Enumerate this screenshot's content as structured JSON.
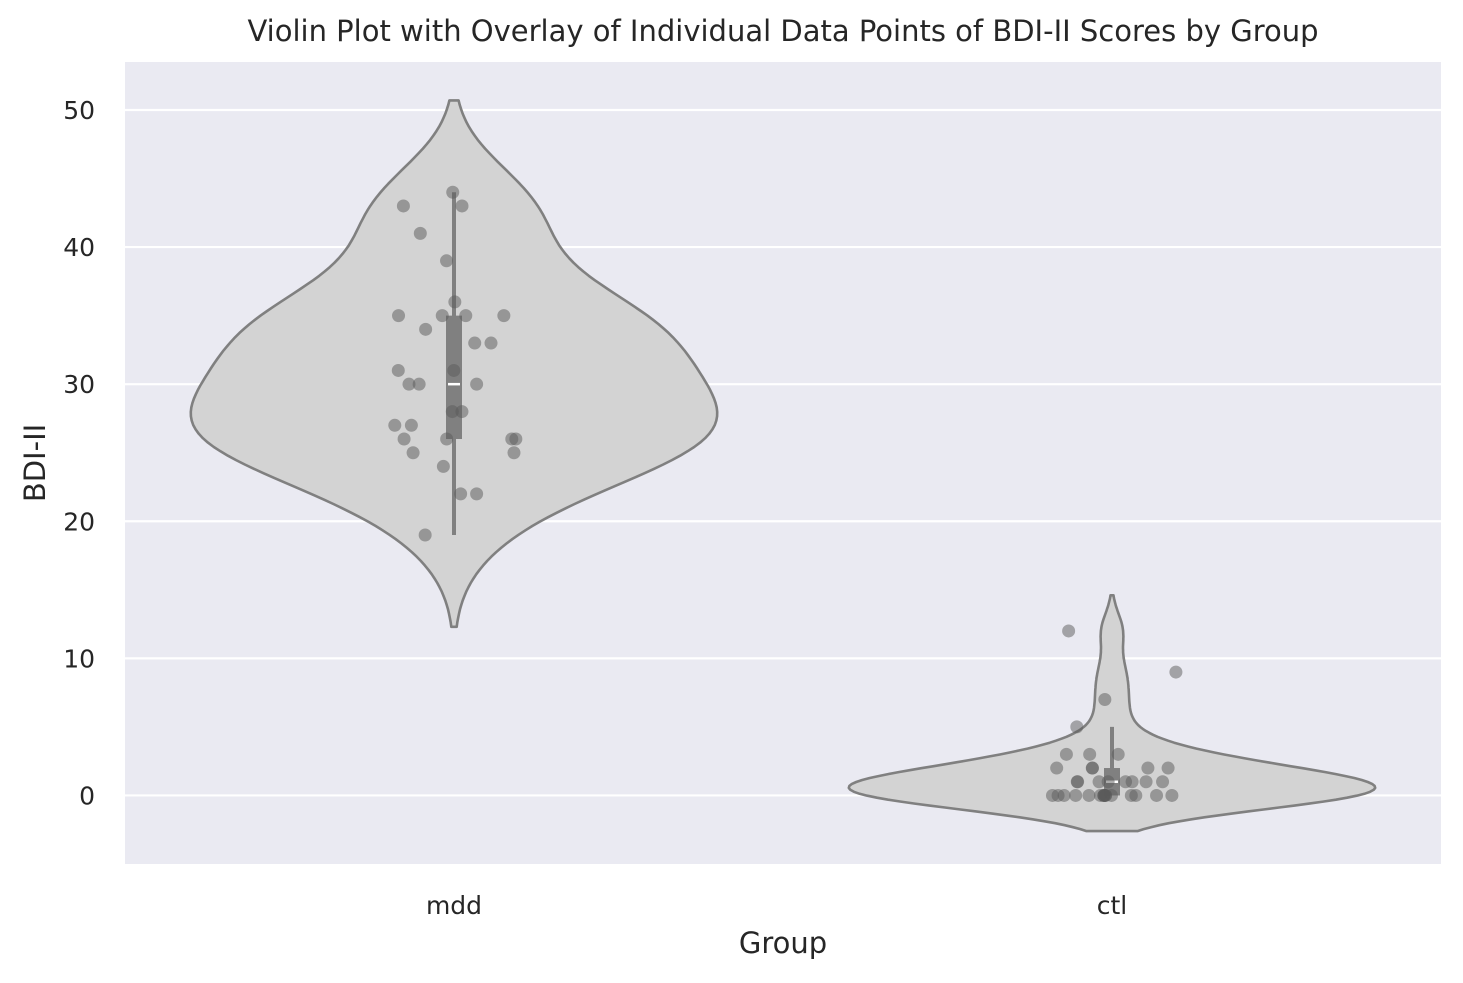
{
  "chart_data": {
    "type": "violin",
    "title": "Violin Plot with Overlay of Individual Data Points of BDI-II Scores by Group",
    "xlabel": "Group",
    "ylabel": "BDI-II",
    "categories": [
      "mdd",
      "ctl"
    ],
    "ylim": [
      -5,
      53.5
    ],
    "yticks": [
      0,
      10,
      20,
      30,
      40,
      50
    ],
    "grid": true,
    "groups": [
      {
        "name": "mdd",
        "points": [
          44,
          43,
          43,
          41,
          39,
          36,
          35,
          35,
          35,
          35,
          34,
          33,
          33,
          31,
          31,
          30,
          30,
          30,
          28,
          28,
          27,
          27,
          26,
          26,
          26,
          26,
          25,
          25,
          24,
          22,
          22,
          19
        ],
        "median": 30,
        "q1": 26,
        "q3": 35,
        "whisker": [
          19,
          44
        ],
        "density_range": [
          12.3,
          50.7
        ]
      },
      {
        "name": "ctl",
        "points": [
          12,
          9,
          7,
          5,
          3,
          3,
          3,
          2,
          2,
          2,
          2,
          2,
          1,
          1,
          1,
          1,
          1,
          1,
          1,
          1,
          0,
          0,
          0,
          0,
          0,
          0,
          0,
          0,
          0,
          0,
          0,
          0,
          0,
          0,
          0,
          0
        ],
        "median": 1,
        "q1": 0,
        "q3": 2,
        "whisker": [
          0,
          5
        ],
        "density_range": [
          -2.6,
          14.6
        ]
      }
    ],
    "colors": {
      "background": "#eaeaf2",
      "grid": "#ffffff",
      "violin_fill": "#d3d3d3",
      "violin_edge": "#808080",
      "box": "#808080",
      "median": "#ffffff",
      "points": "#595959"
    }
  }
}
